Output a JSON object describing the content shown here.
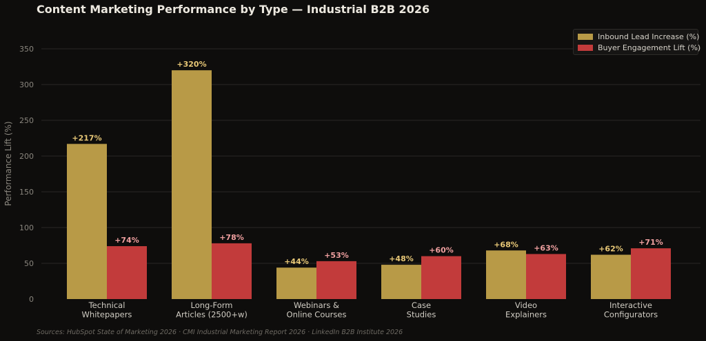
{
  "title": "Content Marketing Performance by Type — Industrial B2B 2026",
  "sources": "Sources: HubSpot State of Marketing 2026 · CMI Industrial Marketing Report 2026 · LinkedIn B2B Institute 2026",
  "colors": {
    "inbound": "#b89a47",
    "engagement": "#c23b3b",
    "inbound_label": "#e8c877",
    "engagement_label": "#f0a0a0"
  },
  "chart_data": {
    "type": "bar",
    "title": "Content Marketing Performance by Type — Industrial B2B 2026",
    "ylabel": "Performance Lift (%)",
    "xlabel": "",
    "ylim": [
      0,
      370
    ],
    "yticks": [
      0,
      50,
      100,
      150,
      200,
      250,
      300,
      350
    ],
    "grid": true,
    "legend_position": "top-right",
    "categories": [
      [
        "Technical",
        "Whitepapers"
      ],
      [
        "Long-Form",
        "Articles (2500+w)"
      ],
      [
        "Webinars &",
        "Online Courses"
      ],
      [
        "Case",
        "Studies"
      ],
      [
        "Video",
        "Explainers"
      ],
      [
        "Interactive",
        "Configurators"
      ]
    ],
    "series": [
      {
        "name": "Inbound Lead Increase (%)",
        "values": [
          217,
          320,
          44,
          48,
          68,
          62
        ],
        "labels": [
          "+217%",
          "+320%",
          "+44%",
          "+48%",
          "+68%",
          "+62%"
        ]
      },
      {
        "name": "Buyer Engagement Lift (%)",
        "values": [
          74,
          78,
          53,
          60,
          63,
          71
        ],
        "labels": [
          "+74%",
          "+78%",
          "+53%",
          "+60%",
          "+63%",
          "+71%"
        ]
      }
    ]
  }
}
